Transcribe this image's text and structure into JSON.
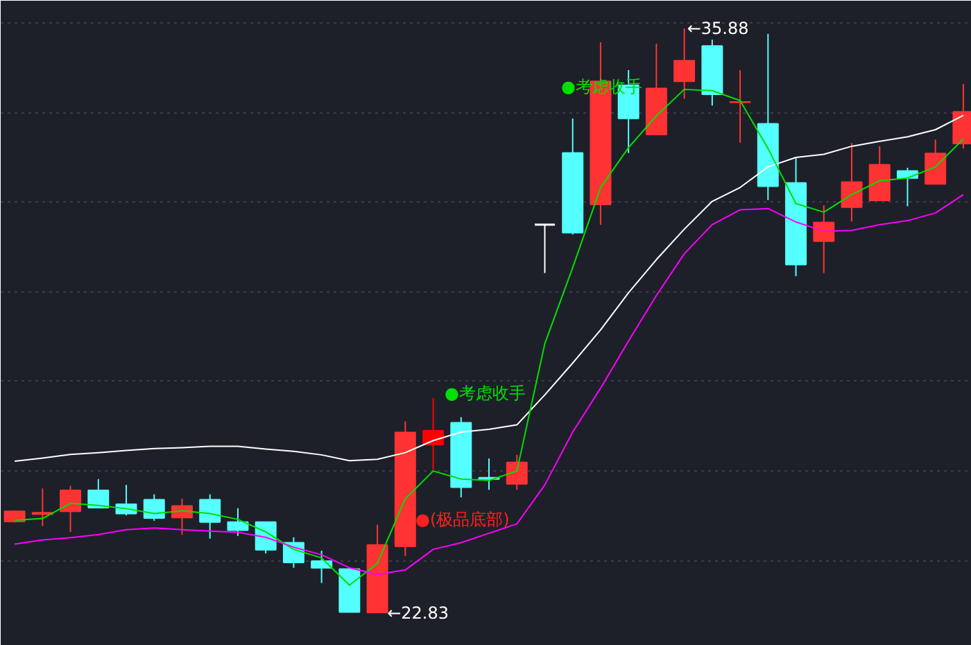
{
  "chart_data": {
    "type": "candlestick",
    "categories": [
      null,
      null,
      null,
      null,
      null,
      null,
      null,
      null,
      null,
      null,
      null,
      null,
      null,
      null,
      null,
      null,
      null,
      null,
      null,
      null,
      null,
      null,
      null,
      null,
      null,
      null,
      null,
      null,
      null,
      null,
      null,
      null,
      null,
      null,
      null
    ],
    "ohlc": [
      [
        24.87,
        25.12,
        24.85,
        25.1
      ],
      [
        25.04,
        25.61,
        24.77,
        25.07
      ],
      [
        25.1,
        25.67,
        24.64,
        25.57
      ],
      [
        25.57,
        25.82,
        25.18,
        25.18
      ],
      [
        25.26,
        25.69,
        25.01,
        25.05
      ],
      [
        25.36,
        25.48,
        24.89,
        24.95
      ],
      [
        24.96,
        25.38,
        24.58,
        25.22
      ],
      [
        25.36,
        25.48,
        24.49,
        24.86
      ],
      [
        24.86,
        25.17,
        24.55,
        24.68
      ],
      [
        24.86,
        24.86,
        24.16,
        24.24
      ],
      [
        24.4,
        24.52,
        23.84,
        23.96
      ],
      [
        23.99,
        24.22,
        23.5,
        23.84
      ],
      [
        23.81,
        23.84,
        22.85,
        22.85
      ],
      [
        22.84,
        24.8,
        22.83,
        24.35
      ],
      [
        24.32,
        27.11,
        24.1,
        26.86
      ],
      [
        26.59,
        27.63,
        26.03,
        26.9
      ],
      [
        27.08,
        27.2,
        25.41,
        25.64
      ],
      [
        25.85,
        26.28,
        25.58,
        25.82
      ],
      [
        25.71,
        26.36,
        25.58,
        26.19
      ],
      [
        31.5,
        31.5,
        30.42,
        31.5
      ],
      [
        33.1,
        33.87,
        31.28,
        31.32
      ],
      [
        31.95,
        35.57,
        31.5,
        34.7
      ],
      [
        34.61,
        34.95,
        33.1,
        33.87
      ],
      [
        33.51,
        35.54,
        33.51,
        34.54
      ],
      [
        34.7,
        35.88,
        34.31,
        35.16
      ],
      [
        35.49,
        35.63,
        34.16,
        34.41
      ],
      [
        34.23,
        34.95,
        33.33,
        34.24
      ],
      [
        33.75,
        35.76,
        32.05,
        32.36
      ],
      [
        32.43,
        33.0,
        30.35,
        30.61
      ],
      [
        31.13,
        31.93,
        30.42,
        31.55
      ],
      [
        31.89,
        33.32,
        31.57,
        32.45
      ],
      [
        32.04,
        33.25,
        32.04,
        32.84
      ],
      [
        32.7,
        32.77,
        31.91,
        32.54
      ],
      [
        32.41,
        33.4,
        32.41,
        33.09
      ],
      [
        33.31,
        34.64,
        33.2,
        34.02
      ]
    ],
    "colors": [
      "#ff3333",
      "#ff3333",
      "#ff3333",
      "#54ffff",
      "#54ffff",
      "#54ffff",
      "#ff3333",
      "#54ffff",
      "#54ffff",
      "#54ffff",
      "#54ffff",
      "#54ffff",
      "#54ffff",
      "#ff3333",
      "#ff3333",
      "#ff0000",
      "#54ffff",
      "#54ffff",
      "#ff3333",
      "#ffffff",
      "#54ffff",
      "#ff3333",
      "#54ffff",
      "#ff3333",
      "#ff3333",
      "#54ffff",
      "#ff3333",
      "#54ffff",
      "#54ffff",
      "#ff3333",
      "#ff3333",
      "#ff3333",
      "#54ffff",
      "#ff3333",
      "#ff3333"
    ],
    "series": [
      {
        "type": "line",
        "color": "#ffffff",
        "values": [
          26.22,
          26.29,
          26.37,
          26.41,
          26.46,
          26.5,
          26.52,
          26.55,
          26.55,
          26.49,
          26.44,
          26.36,
          26.23,
          26.26,
          26.41,
          26.68,
          26.87,
          26.93,
          27.03,
          27.7,
          28.41,
          29.15,
          29.98,
          30.72,
          31.4,
          32.02,
          32.33,
          32.79,
          33.0,
          33.07,
          33.25,
          33.36,
          33.46,
          33.62,
          33.94
        ]
      },
      {
        "type": "line",
        "color": "#00e000",
        "values": [
          24.9,
          24.94,
          25.28,
          25.23,
          25.16,
          25.05,
          25.11,
          25.05,
          24.92,
          24.64,
          24.25,
          24.06,
          23.45,
          23.94,
          25.38,
          26.0,
          25.82,
          25.79,
          26.0,
          28.84,
          30.54,
          32.33,
          33.22,
          33.93,
          34.52,
          34.49,
          34.27,
          33.2,
          31.97,
          31.78,
          32.17,
          32.48,
          32.54,
          32.79,
          33.41
        ]
      },
      {
        "type": "line",
        "color": "#ff00ff",
        "values": [
          24.37,
          24.46,
          24.51,
          24.58,
          24.69,
          24.73,
          24.69,
          24.66,
          24.63,
          24.52,
          24.3,
          24.13,
          23.84,
          23.69,
          23.79,
          24.25,
          24.4,
          24.61,
          24.82,
          25.69,
          26.87,
          27.85,
          28.9,
          29.92,
          30.85,
          31.5,
          31.83,
          31.86,
          31.56,
          31.35,
          31.37,
          31.5,
          31.59,
          31.76,
          32.17
        ]
      }
    ],
    "annotations": [
      "●考虑收手",
      "●考虑收手",
      "●(极品底部)",
      "←22.83",
      "←35.88"
    ],
    "ylim": [
      22.1,
      36.5
    ],
    "yticks": [
      {
        "value": 24,
        "label": null
      },
      {
        "value": 26,
        "label": null
      },
      {
        "value": 28,
        "label": null
      },
      {
        "value": 30,
        "label": null
      },
      {
        "value": 32,
        "label": null
      },
      {
        "value": 34,
        "label": null
      },
      {
        "value": 36,
        "label": null
      }
    ],
    "grid": "y",
    "tick_labels": false
  }
}
